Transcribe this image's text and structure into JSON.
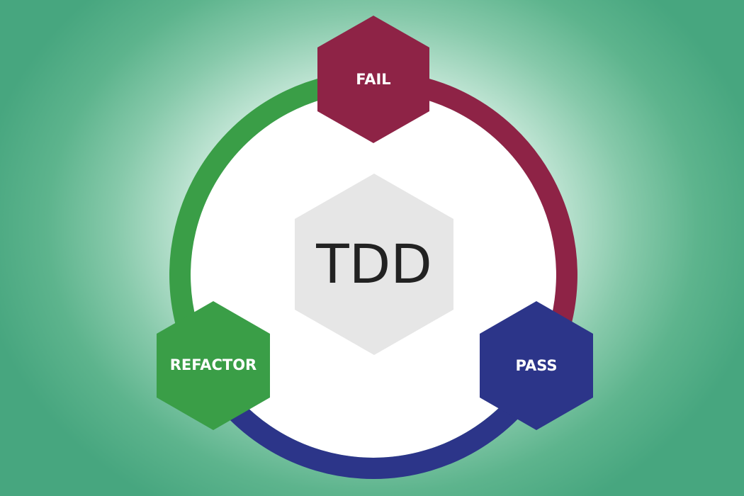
{
  "diagram": {
    "center": {
      "label": "TDD",
      "color": "#e6e6e6",
      "text_color": "#222222"
    },
    "nodes": [
      {
        "id": "fail",
        "label": "FAIL",
        "color": "#8e2346"
      },
      {
        "id": "pass",
        "label": "PASS",
        "color": "#2c3589"
      },
      {
        "id": "refactor",
        "label": "REFACTOR",
        "color": "#3a9e47"
      }
    ],
    "arcs": [
      {
        "from": "fail",
        "to": "pass",
        "color": "#8e2346"
      },
      {
        "from": "pass",
        "to": "refactor",
        "color": "#2c3589"
      },
      {
        "from": "refactor",
        "to": "fail",
        "color": "#3a9e47"
      }
    ],
    "ring_fill": "#ffffff"
  }
}
